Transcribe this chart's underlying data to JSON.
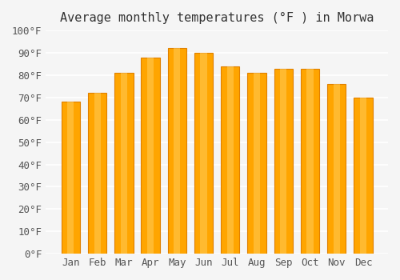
{
  "title": "Average monthly temperatures (°F ) in Morwa",
  "months": [
    "Jan",
    "Feb",
    "Mar",
    "Apr",
    "May",
    "Jun",
    "Jul",
    "Aug",
    "Sep",
    "Oct",
    "Nov",
    "Dec"
  ],
  "values": [
    68,
    72,
    81,
    88,
    92,
    90,
    84,
    81,
    83,
    83,
    76,
    70
  ],
  "bar_color": "#FFA500",
  "bar_edge_color": "#E08000",
  "ylim": [
    0,
    100
  ],
  "ytick_step": 10,
  "background_color": "#f5f5f5",
  "grid_color": "#ffffff",
  "title_fontsize": 11,
  "tick_fontsize": 9
}
